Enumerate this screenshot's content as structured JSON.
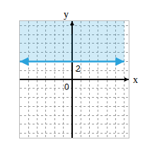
{
  "chart_data": {
    "type": "line",
    "x_label": "x",
    "y_label": "y",
    "x": [
      -6,
      6
    ],
    "values": [
      2,
      2
    ],
    "color": "#2aa3dc",
    "xlim": [
      -6,
      6.5
    ],
    "ylim": [
      -6.5,
      6.5
    ],
    "xticks": [
      0
    ],
    "yticks": [
      2
    ],
    "grid": true
  }
}
